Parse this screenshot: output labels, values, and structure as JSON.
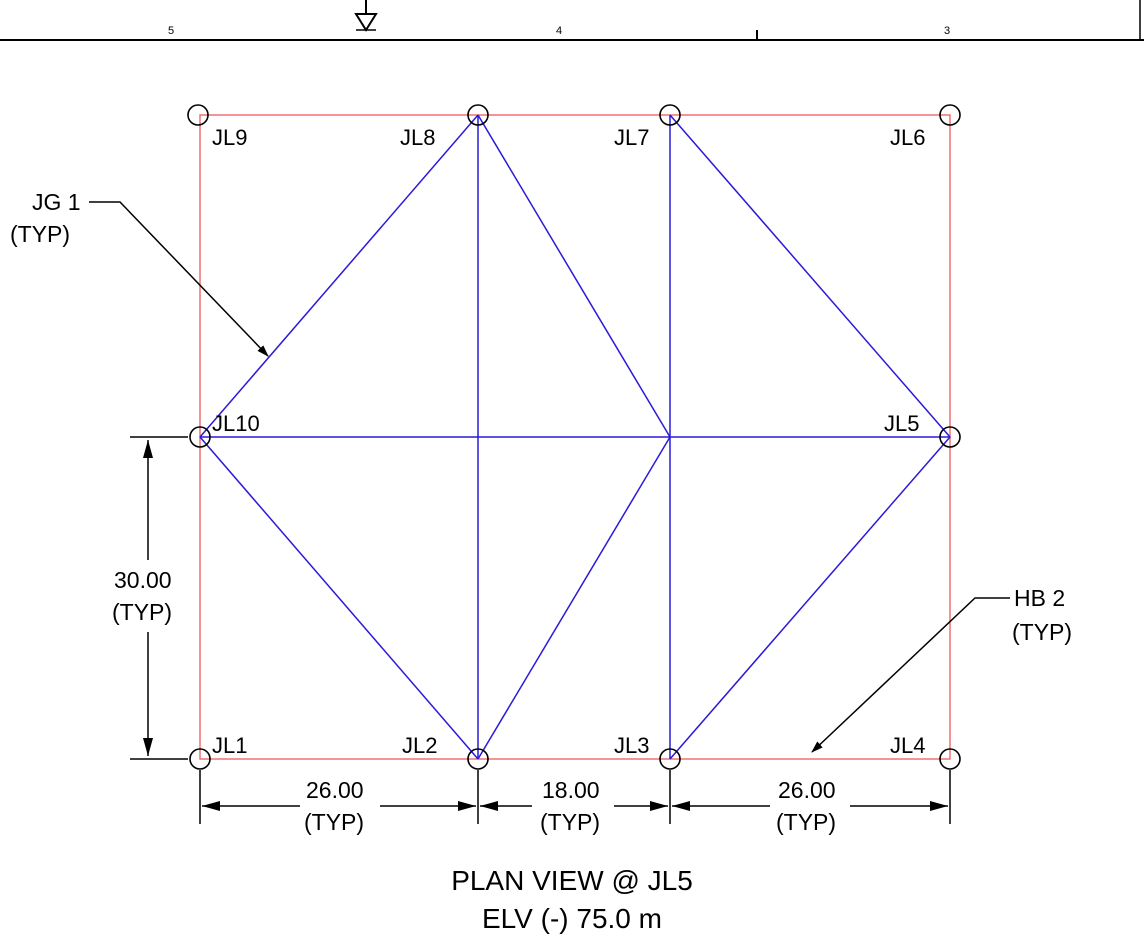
{
  "ruler": {
    "labels": [
      "5",
      "4",
      "3"
    ]
  },
  "joints": {
    "jl1": "JL1",
    "jl2": "JL2",
    "jl3": "JL3",
    "jl4": "JL4",
    "jl5": "JL5",
    "jl6": "JL6",
    "jl7": "JL7",
    "jl8": "JL8",
    "jl9": "JL9",
    "jl10": "JL10"
  },
  "dimensions": {
    "bay1": {
      "value": "26.00",
      "note": "(TYP)"
    },
    "bay2": {
      "value": "18.00",
      "note": "(TYP)"
    },
    "bay3": {
      "value": "26.00",
      "note": "(TYP)"
    },
    "vertical": {
      "value": "30.00",
      "note": "(TYP)"
    }
  },
  "callouts": {
    "jg": {
      "name": "JG 1",
      "note": "(TYP)"
    },
    "hb": {
      "name": "HB 2",
      "note": "(TYP)"
    }
  },
  "title": {
    "line1": "PLAN VIEW @ JL5",
    "line2": "ELV (-) 75.0 m"
  },
  "colors": {
    "outline": "#f07070",
    "members": "#2a1ad8",
    "ink": "#000000"
  }
}
